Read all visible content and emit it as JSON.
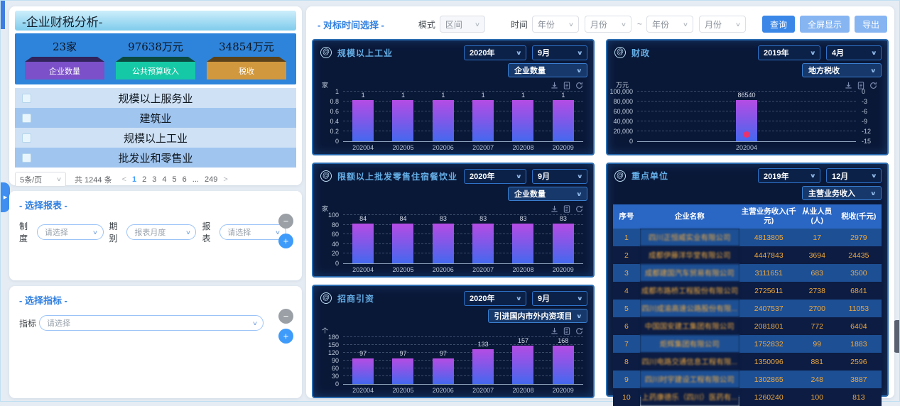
{
  "colors": {
    "accent": "#2f7fe0",
    "panel_bg": "#0a1838",
    "panel_border": "#2a6cb0",
    "bar_top": "#b44ce4",
    "bar_bottom": "#4468ee",
    "marker": "#e8336e",
    "stat_purple": "#7b50c8",
    "stat_teal": "#16c9a6",
    "stat_orange": "#d2983e"
  },
  "left": {
    "title": "-企业财税分析-",
    "stats": [
      {
        "value": "23家",
        "label": "企业数量"
      },
      {
        "value": "97638万元",
        "label": "公共预算收入"
      },
      {
        "value": "34854万元",
        "label": "税收"
      }
    ],
    "industries": [
      "规模以上服务业",
      "建筑业",
      "规模以上工业",
      "批发业和零售业"
    ],
    "pagination": {
      "page_size": "5条/页",
      "total": "共 1244 条",
      "prev": "<",
      "next": ">",
      "pages": [
        "1",
        "2",
        "3",
        "4",
        "5",
        "6",
        "...",
        "249"
      ],
      "active": "1"
    },
    "report": {
      "title": "- 选择报表 -",
      "fields": [
        {
          "label": "制度",
          "value": "请选择"
        },
        {
          "label": "期别",
          "value": "报表月度"
        },
        {
          "label": "报表",
          "value": "请选择"
        }
      ],
      "minus": "−",
      "plus": "+"
    },
    "indicator": {
      "title": "- 选择指标 -",
      "fields": [
        {
          "label": "指标",
          "value": "请选择"
        }
      ],
      "minus": "−",
      "plus": "+"
    },
    "expand_arrow": "▶"
  },
  "toolbar": {
    "title": "- 对标时间选择 -",
    "mode_label": "模式",
    "mode_value": "区间",
    "time_label": "时间",
    "start_year": "年份",
    "start_month": "月份",
    "tilde": "~",
    "end_year": "年份",
    "end_month": "月份",
    "buttons": [
      {
        "label": "查询"
      },
      {
        "label": "全屏显示"
      },
      {
        "label": "导出"
      }
    ]
  },
  "toolbox_icons": [
    "download-icon",
    "file-icon",
    "refresh-icon"
  ],
  "charts": [
    {
      "type": "bar",
      "title": "规模以上工业",
      "year": "2020年",
      "month": "9月",
      "metric": "企业数量",
      "unit": "家",
      "categories": [
        "202004",
        "202005",
        "202006",
        "202007",
        "202008",
        "202009"
      ],
      "values": [
        1,
        1,
        1,
        1,
        1,
        1
      ],
      "ylim": [
        0,
        1
      ],
      "yticks": [
        0,
        0.2,
        0.4,
        0.6,
        0.8,
        1
      ],
      "ytick_labels": [
        "0",
        "0.2",
        "0.4",
        "0.6",
        "0.8",
        "1"
      ],
      "grid": "dashed",
      "legend": "none"
    },
    {
      "type": "bar",
      "title": "财政",
      "year": "2019年",
      "month": "4月",
      "metric": "地方税收",
      "unit": "万元",
      "categories": [
        "202004"
      ],
      "values": [
        86540
      ],
      "ylim": [
        0,
        100000
      ],
      "yticks": [
        0,
        20000,
        40000,
        60000,
        80000,
        100000
      ],
      "ytick_labels": [
        "0",
        "20,000",
        "40,000",
        "60,000",
        "80,000",
        "100,000"
      ],
      "yticks_right": [
        "0",
        "-3",
        "-6",
        "-9",
        "-12",
        "-15"
      ],
      "marker": {
        "category": "202004",
        "axis": "right",
        "value": -14,
        "color": "#e8336e"
      },
      "grid": "dashed",
      "legend": "none"
    },
    {
      "type": "bar",
      "title": "限额以上批发零售住宿餐饮业",
      "year": "2020年",
      "month": "9月",
      "metric": "企业数量",
      "unit": "家",
      "categories": [
        "202004",
        "202005",
        "202006",
        "202007",
        "202008",
        "202009"
      ],
      "values": [
        84,
        84,
        83,
        83,
        83,
        83
      ],
      "ylim": [
        0,
        100
      ],
      "yticks": [
        0,
        20,
        40,
        60,
        80,
        100
      ],
      "ytick_labels": [
        "0",
        "20",
        "40",
        "60",
        "80",
        "100"
      ],
      "grid": "dashed",
      "legend": "none"
    },
    {
      "type": "bar",
      "title": "招商引资",
      "year": "2020年",
      "month": "9月",
      "metric": "引进国内市外内资项目",
      "unit": "个",
      "categories": [
        "202004",
        "202005",
        "202006",
        "202007",
        "202008",
        "202009"
      ],
      "values": [
        97,
        97,
        97,
        133,
        157,
        168
      ],
      "ylim": [
        0,
        180
      ],
      "yticks": [
        0,
        30,
        60,
        90,
        120,
        150,
        180
      ],
      "ytick_labels": [
        "0",
        "30",
        "60",
        "90",
        "120",
        "150",
        "180"
      ],
      "grid": "dashed",
      "legend": "none"
    }
  ],
  "table": {
    "title": "重点单位",
    "year": "2019年",
    "month": "12月",
    "metric": "主营业务收入",
    "columns": [
      "序号",
      "企业名称",
      "主营业务收入(千元)",
      "从业人员(人)",
      "税收(千元)"
    ],
    "rows": [
      [
        "1",
        "四川正恒威实业有限公司",
        "4813805",
        "17",
        "2979"
      ],
      [
        "2",
        "成都伊藤洋华堂有限公司",
        "4447843",
        "3694",
        "24435"
      ],
      [
        "3",
        "成都建国汽车贸易有限公司",
        "3111651",
        "683",
        "3500"
      ],
      [
        "4",
        "成都市路桥工程股份有限公司",
        "2725611",
        "2738",
        "6841"
      ],
      [
        "5",
        "四川成渝高速公路股份有限...",
        "2407537",
        "2700",
        "11053"
      ],
      [
        "6",
        "中国国安建工集团有限公司",
        "2081801",
        "772",
        "6404"
      ],
      [
        "7",
        "炬辉集团有限公司",
        "1752832",
        "99",
        "1883"
      ],
      [
        "8",
        "四川电路交通信息工程有限...",
        "1350096",
        "881",
        "2596"
      ],
      [
        "9",
        "四川时宇建设工程有限公司",
        "1302865",
        "248",
        "3887"
      ],
      [
        "10",
        "上药康德乐（四川）医药有...",
        "1260240",
        "100",
        "813"
      ]
    ]
  }
}
